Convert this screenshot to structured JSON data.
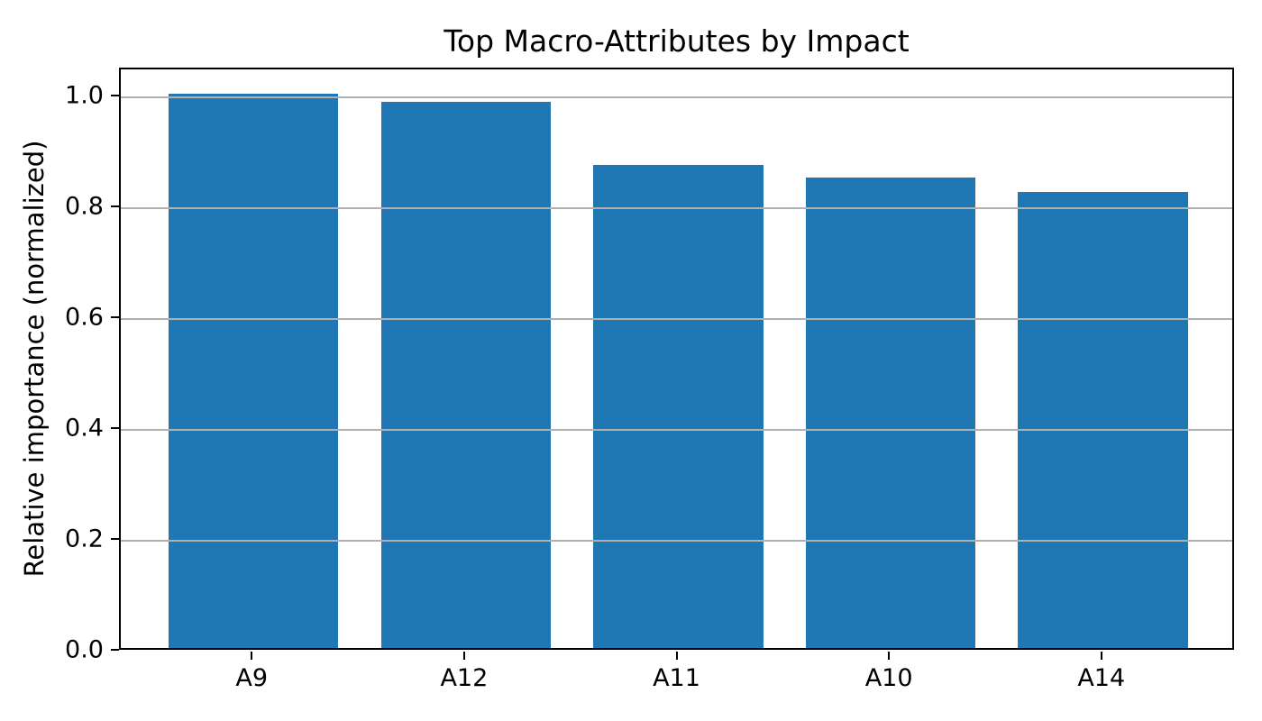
{
  "chart_data": {
    "type": "bar",
    "title": "Top Macro-Attributes by Impact",
    "categories": [
      "A9",
      "A12",
      "A11",
      "A10",
      "A14"
    ],
    "values": [
      1.0,
      0.985,
      0.872,
      0.849,
      0.822
    ],
    "xlabel": "",
    "ylabel": "Relative importance (normalized)",
    "ylim": [
      0,
      1.05
    ],
    "yticks": [
      0.0,
      0.2,
      0.4,
      0.6,
      0.8,
      1.0
    ],
    "ytick_labels": [
      "0.0",
      "0.2",
      "0.4",
      "0.6",
      "0.8",
      "1.0"
    ],
    "grid": "horizontal-only",
    "grid_over_bars": true,
    "legend": "none",
    "bar_width_fraction": 0.8,
    "colors": {
      "bar": "#1f77b4",
      "grid": "#b0b0b0",
      "spine": "#000000",
      "text": "#000000",
      "background": "#ffffff"
    }
  }
}
